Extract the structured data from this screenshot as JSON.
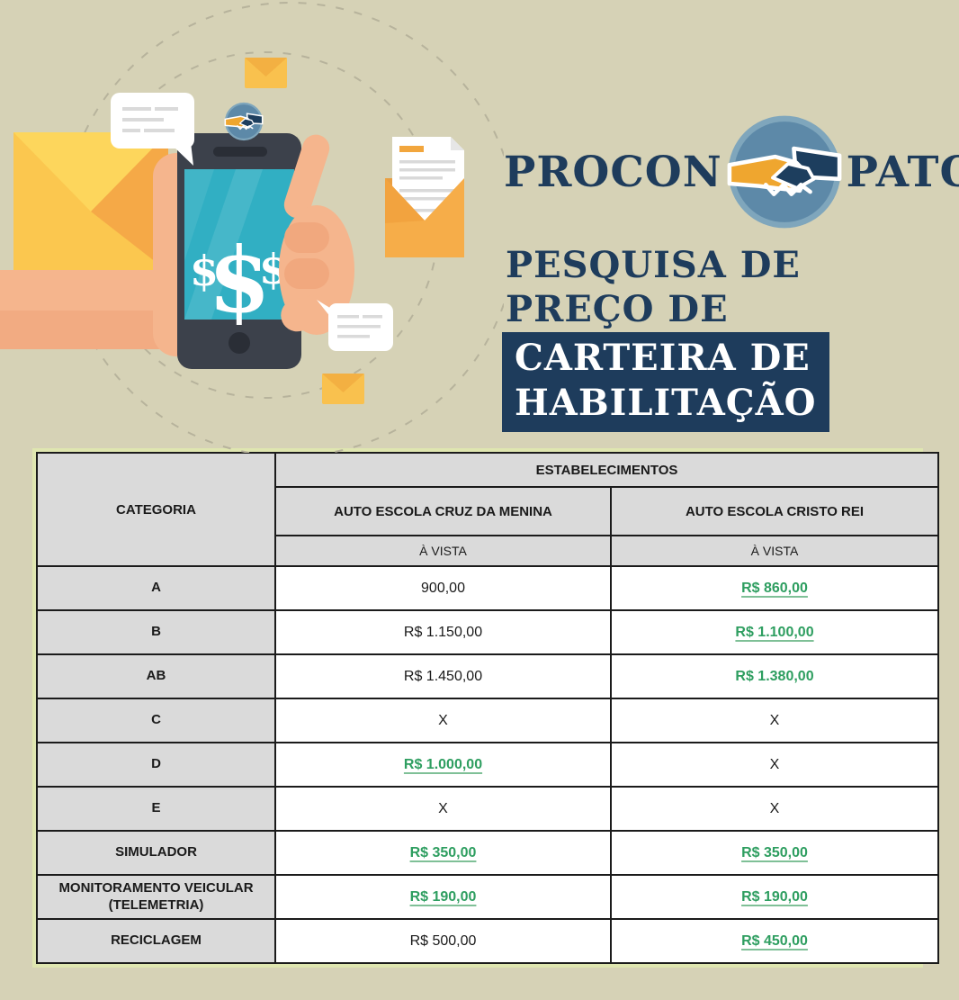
{
  "brand": {
    "name_left": "PROCON",
    "name_right": "PATOS",
    "logo": "handshake-icon"
  },
  "title": {
    "line1": "PESQUISA DE",
    "line2": "PREÇO DE",
    "highlight_line1": "CARTEIRA DE",
    "highlight_line2": "HABILITAÇÃO"
  },
  "illustration": {
    "description": "flat illustration of a hand holding a smartphone showing dollar signs, surrounded by envelopes, an open letter, chat bubbles and dashed orbit lines",
    "icons": [
      "envelope-icon",
      "smartphone-icon",
      "dollar-icon",
      "chat-bubble-icon",
      "open-letter-icon",
      "handshake-icon"
    ]
  },
  "colors": {
    "background": "#d6d2b6",
    "navy": "#1e3c5c",
    "green_price": "#2e9e60",
    "header_gray": "#dadada",
    "screen_teal": "#31afc3",
    "envelope_yellow": "#fbc74f",
    "envelope_orange": "#f6ad49",
    "skin": "#f5b58d",
    "logo_blue": "#5d89a8",
    "logo_yellow": "#efa62f",
    "table_rim": "#dfe6b0"
  },
  "table": {
    "group_header": "ESTABELECIMENTOS",
    "row_header": "CATEGORIA",
    "establishments": [
      "AUTO ESCOLA CRUZ DA MENINA",
      "AUTO ESCOLA CRISTO REI"
    ],
    "price_type_labels": [
      "À VISTA",
      "À VISTA"
    ],
    "rows": [
      {
        "category": "A",
        "values": [
          {
            "text": "900,00",
            "green": false,
            "underline": false
          },
          {
            "text": "R$ 860,00",
            "green": true,
            "underline": true
          }
        ]
      },
      {
        "category": "B",
        "values": [
          {
            "text": "R$ 1.150,00",
            "green": false,
            "underline": false
          },
          {
            "text": "R$ 1.100,00",
            "green": true,
            "underline": true
          }
        ]
      },
      {
        "category": "AB",
        "values": [
          {
            "text": "R$ 1.450,00",
            "green": false,
            "underline": false
          },
          {
            "text": "R$ 1.380,00",
            "green": true,
            "underline": false
          }
        ]
      },
      {
        "category": "C",
        "values": [
          {
            "text": "X",
            "green": false,
            "underline": false
          },
          {
            "text": "X",
            "green": false,
            "underline": false
          }
        ]
      },
      {
        "category": "D",
        "values": [
          {
            "text": "R$ 1.000,00",
            "green": true,
            "underline": true
          },
          {
            "text": "X",
            "green": false,
            "underline": false
          }
        ]
      },
      {
        "category": "E",
        "values": [
          {
            "text": "X",
            "green": false,
            "underline": false
          },
          {
            "text": "X",
            "green": false,
            "underline": false
          }
        ]
      },
      {
        "category": "SIMULADOR",
        "values": [
          {
            "text": "R$ 350,00",
            "green": true,
            "underline": true
          },
          {
            "text": "R$ 350,00",
            "green": true,
            "underline": true
          }
        ]
      },
      {
        "category": "MONITORAMENTO VEICULAR (TELEMETRIA)",
        "values": [
          {
            "text": "R$ 190,00",
            "green": true,
            "underline": true
          },
          {
            "text": "R$ 190,00",
            "green": true,
            "underline": true
          }
        ]
      },
      {
        "category": "RECICLAGEM",
        "values": [
          {
            "text": "R$ 500,00",
            "green": false,
            "underline": false
          },
          {
            "text": "R$ 450,00",
            "green": true,
            "underline": true
          }
        ]
      }
    ]
  }
}
